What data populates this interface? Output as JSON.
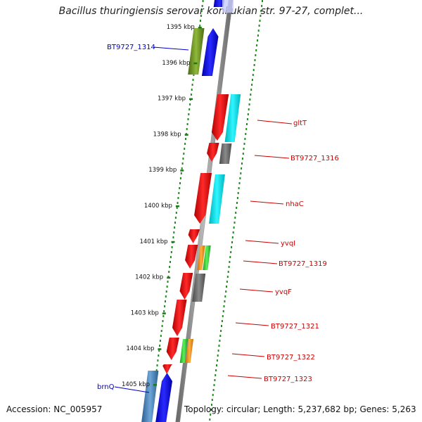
{
  "title": "Bacillus thuringiensis serovar konkukian str. 97-27, complet...",
  "footer": {
    "accession": "Accession: NC_005957",
    "topology": "Topology: circular; Length: 5,237,682 bp; Genes: 5,263"
  },
  "scale": {
    "ticks": [
      "1395 kbp",
      "1396 kbp",
      "1397 kbp",
      "1398 kbp",
      "1399 kbp",
      "1400 kbp",
      "1401 kbp",
      "1402 kbp",
      "1403 kbp",
      "1404 kbp",
      "1405 kbp"
    ]
  },
  "labels": {
    "left": [
      {
        "text": "BT9727_1314",
        "color": "#0000cc"
      },
      {
        "text": "brnQ",
        "color": "#0000cc"
      }
    ],
    "right": [
      {
        "text": "gltT",
        "color": "#cc0000"
      },
      {
        "text": "BT9727_1316",
        "color": "#cc0000"
      },
      {
        "text": "nhaC",
        "color": "#cc0000"
      },
      {
        "text": "yvqI",
        "color": "#cc0000"
      },
      {
        "text": "BT9727_1319",
        "color": "#cc0000"
      },
      {
        "text": "yvqF",
        "color": "#cc0000"
      },
      {
        "text": "BT9727_1321",
        "color": "#cc0000"
      },
      {
        "text": "BT9727_1322",
        "color": "#cc0000"
      },
      {
        "text": "BT9727_1323",
        "color": "#cc0000"
      }
    ]
  },
  "colors": {
    "forward": "#0000ee",
    "reverse": "#ee0000",
    "backbone": "#888888",
    "dots": "#228b22",
    "cyan": "#00e5ee",
    "gray": "#666666",
    "olive": "#6b8e23",
    "steel": "#4682b4",
    "green": "#32cd32",
    "orange": "#ff8c00"
  }
}
